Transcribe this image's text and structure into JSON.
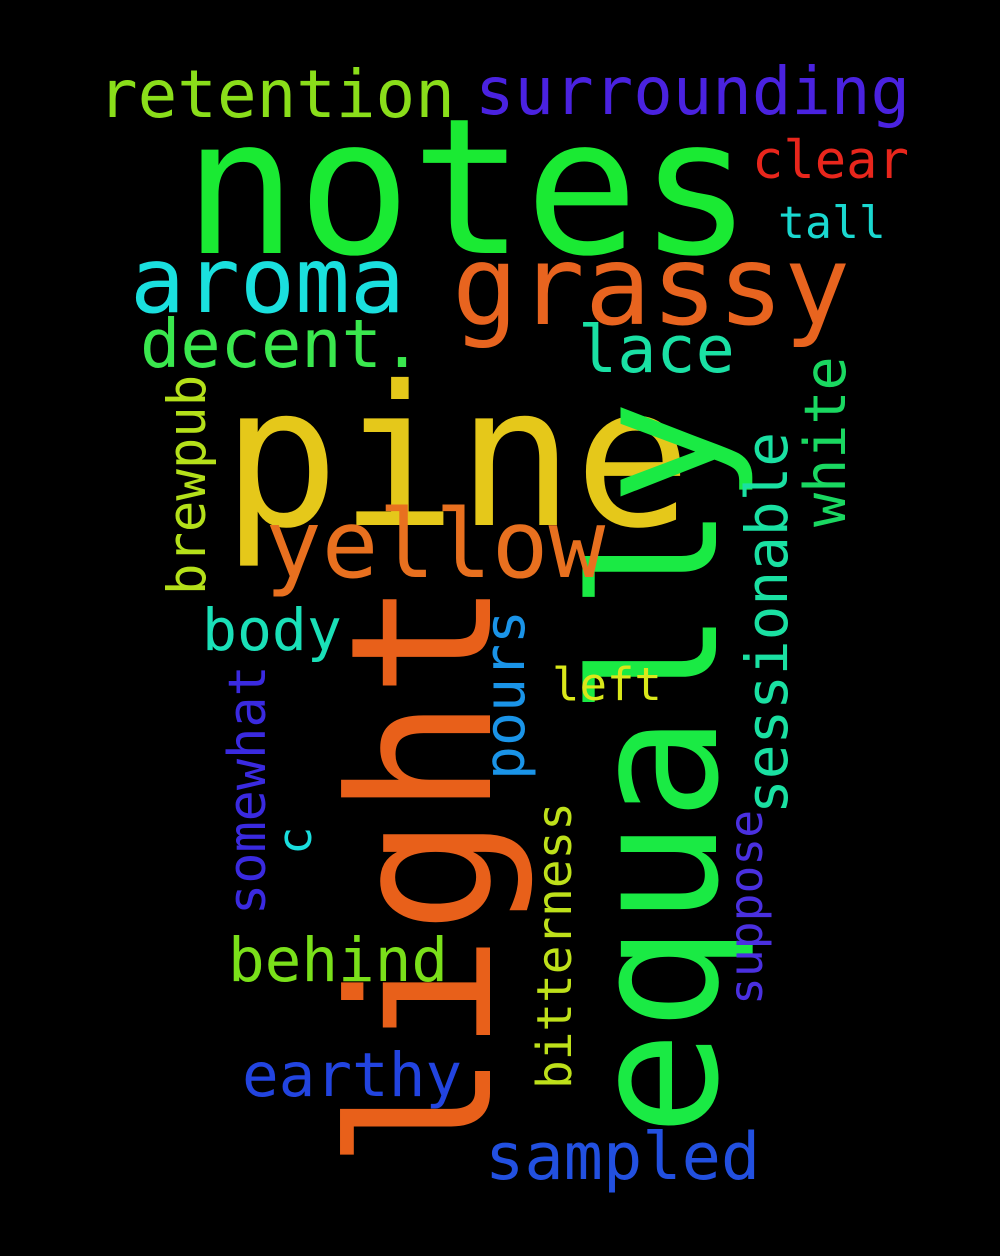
{
  "words": [
    {
      "key": "notes",
      "text": "notes",
      "color": "#1aea33",
      "orientation": "horizontal"
    },
    {
      "key": "pine",
      "text": "pine",
      "color": "#e5c81a",
      "orientation": "horizontal"
    },
    {
      "key": "light",
      "text": "light",
      "color": "#e8601a",
      "orientation": "vertical"
    },
    {
      "key": "equally",
      "text": "equally",
      "color": "#1aea44",
      "orientation": "vertical"
    },
    {
      "key": "grassy",
      "text": "grassy",
      "color": "#e8641f",
      "orientation": "horizontal"
    },
    {
      "key": "aroma",
      "text": "aroma",
      "color": "#1ae0de",
      "orientation": "horizontal"
    },
    {
      "key": "yellow",
      "text": "yellow",
      "color": "#e8701f",
      "orientation": "horizontal"
    },
    {
      "key": "surrounding",
      "text": "surrounding",
      "color": "#4a22e0",
      "orientation": "horizontal"
    },
    {
      "key": "retention",
      "text": "retention",
      "color": "#8ade1a",
      "orientation": "horizontal"
    },
    {
      "key": "decent",
      "text": "decent.",
      "color": "#3ae84e",
      "orientation": "horizontal"
    },
    {
      "key": "lace",
      "text": "lace",
      "color": "#1ae0a4",
      "orientation": "horizontal"
    },
    {
      "key": "clear",
      "text": "clear",
      "color": "#e8261c",
      "orientation": "horizontal"
    },
    {
      "key": "tall",
      "text": "tall",
      "color": "#1ad8d0",
      "orientation": "horizontal"
    },
    {
      "key": "white",
      "text": "white",
      "color": "#1ad861",
      "orientation": "vertical"
    },
    {
      "key": "sessionable",
      "text": "sessionable",
      "color": "#1ae0a2",
      "orientation": "vertical"
    },
    {
      "key": "brewpub",
      "text": "brewpub",
      "color": "#b4e01a",
      "orientation": "vertical"
    },
    {
      "key": "body",
      "text": "body",
      "color": "#1ae0b8",
      "orientation": "horizontal"
    },
    {
      "key": "pours",
      "text": "pours",
      "color": "#1a94e8",
      "orientation": "vertical"
    },
    {
      "key": "left",
      "text": "left",
      "color": "#dae81a",
      "orientation": "horizontal"
    },
    {
      "key": "somewhat",
      "text": "somewhat",
      "color": "#3a2ae0",
      "orientation": "vertical"
    },
    {
      "key": "c",
      "text": "c",
      "color": "#1adede",
      "orientation": "vertical"
    },
    {
      "key": "suppose",
      "text": "suppose",
      "color": "#4a30e0",
      "orientation": "vertical"
    },
    {
      "key": "bitterness",
      "text": "bitterness",
      "color": "#bee01a",
      "orientation": "vertical"
    },
    {
      "key": "behind",
      "text": "behind",
      "color": "#7ae01a",
      "orientation": "horizontal"
    },
    {
      "key": "earthy",
      "text": "earthy",
      "color": "#2244e0",
      "orientation": "horizontal"
    },
    {
      "key": "sampled",
      "text": "sampled",
      "color": "#2250e0",
      "orientation": "horizontal"
    }
  ]
}
